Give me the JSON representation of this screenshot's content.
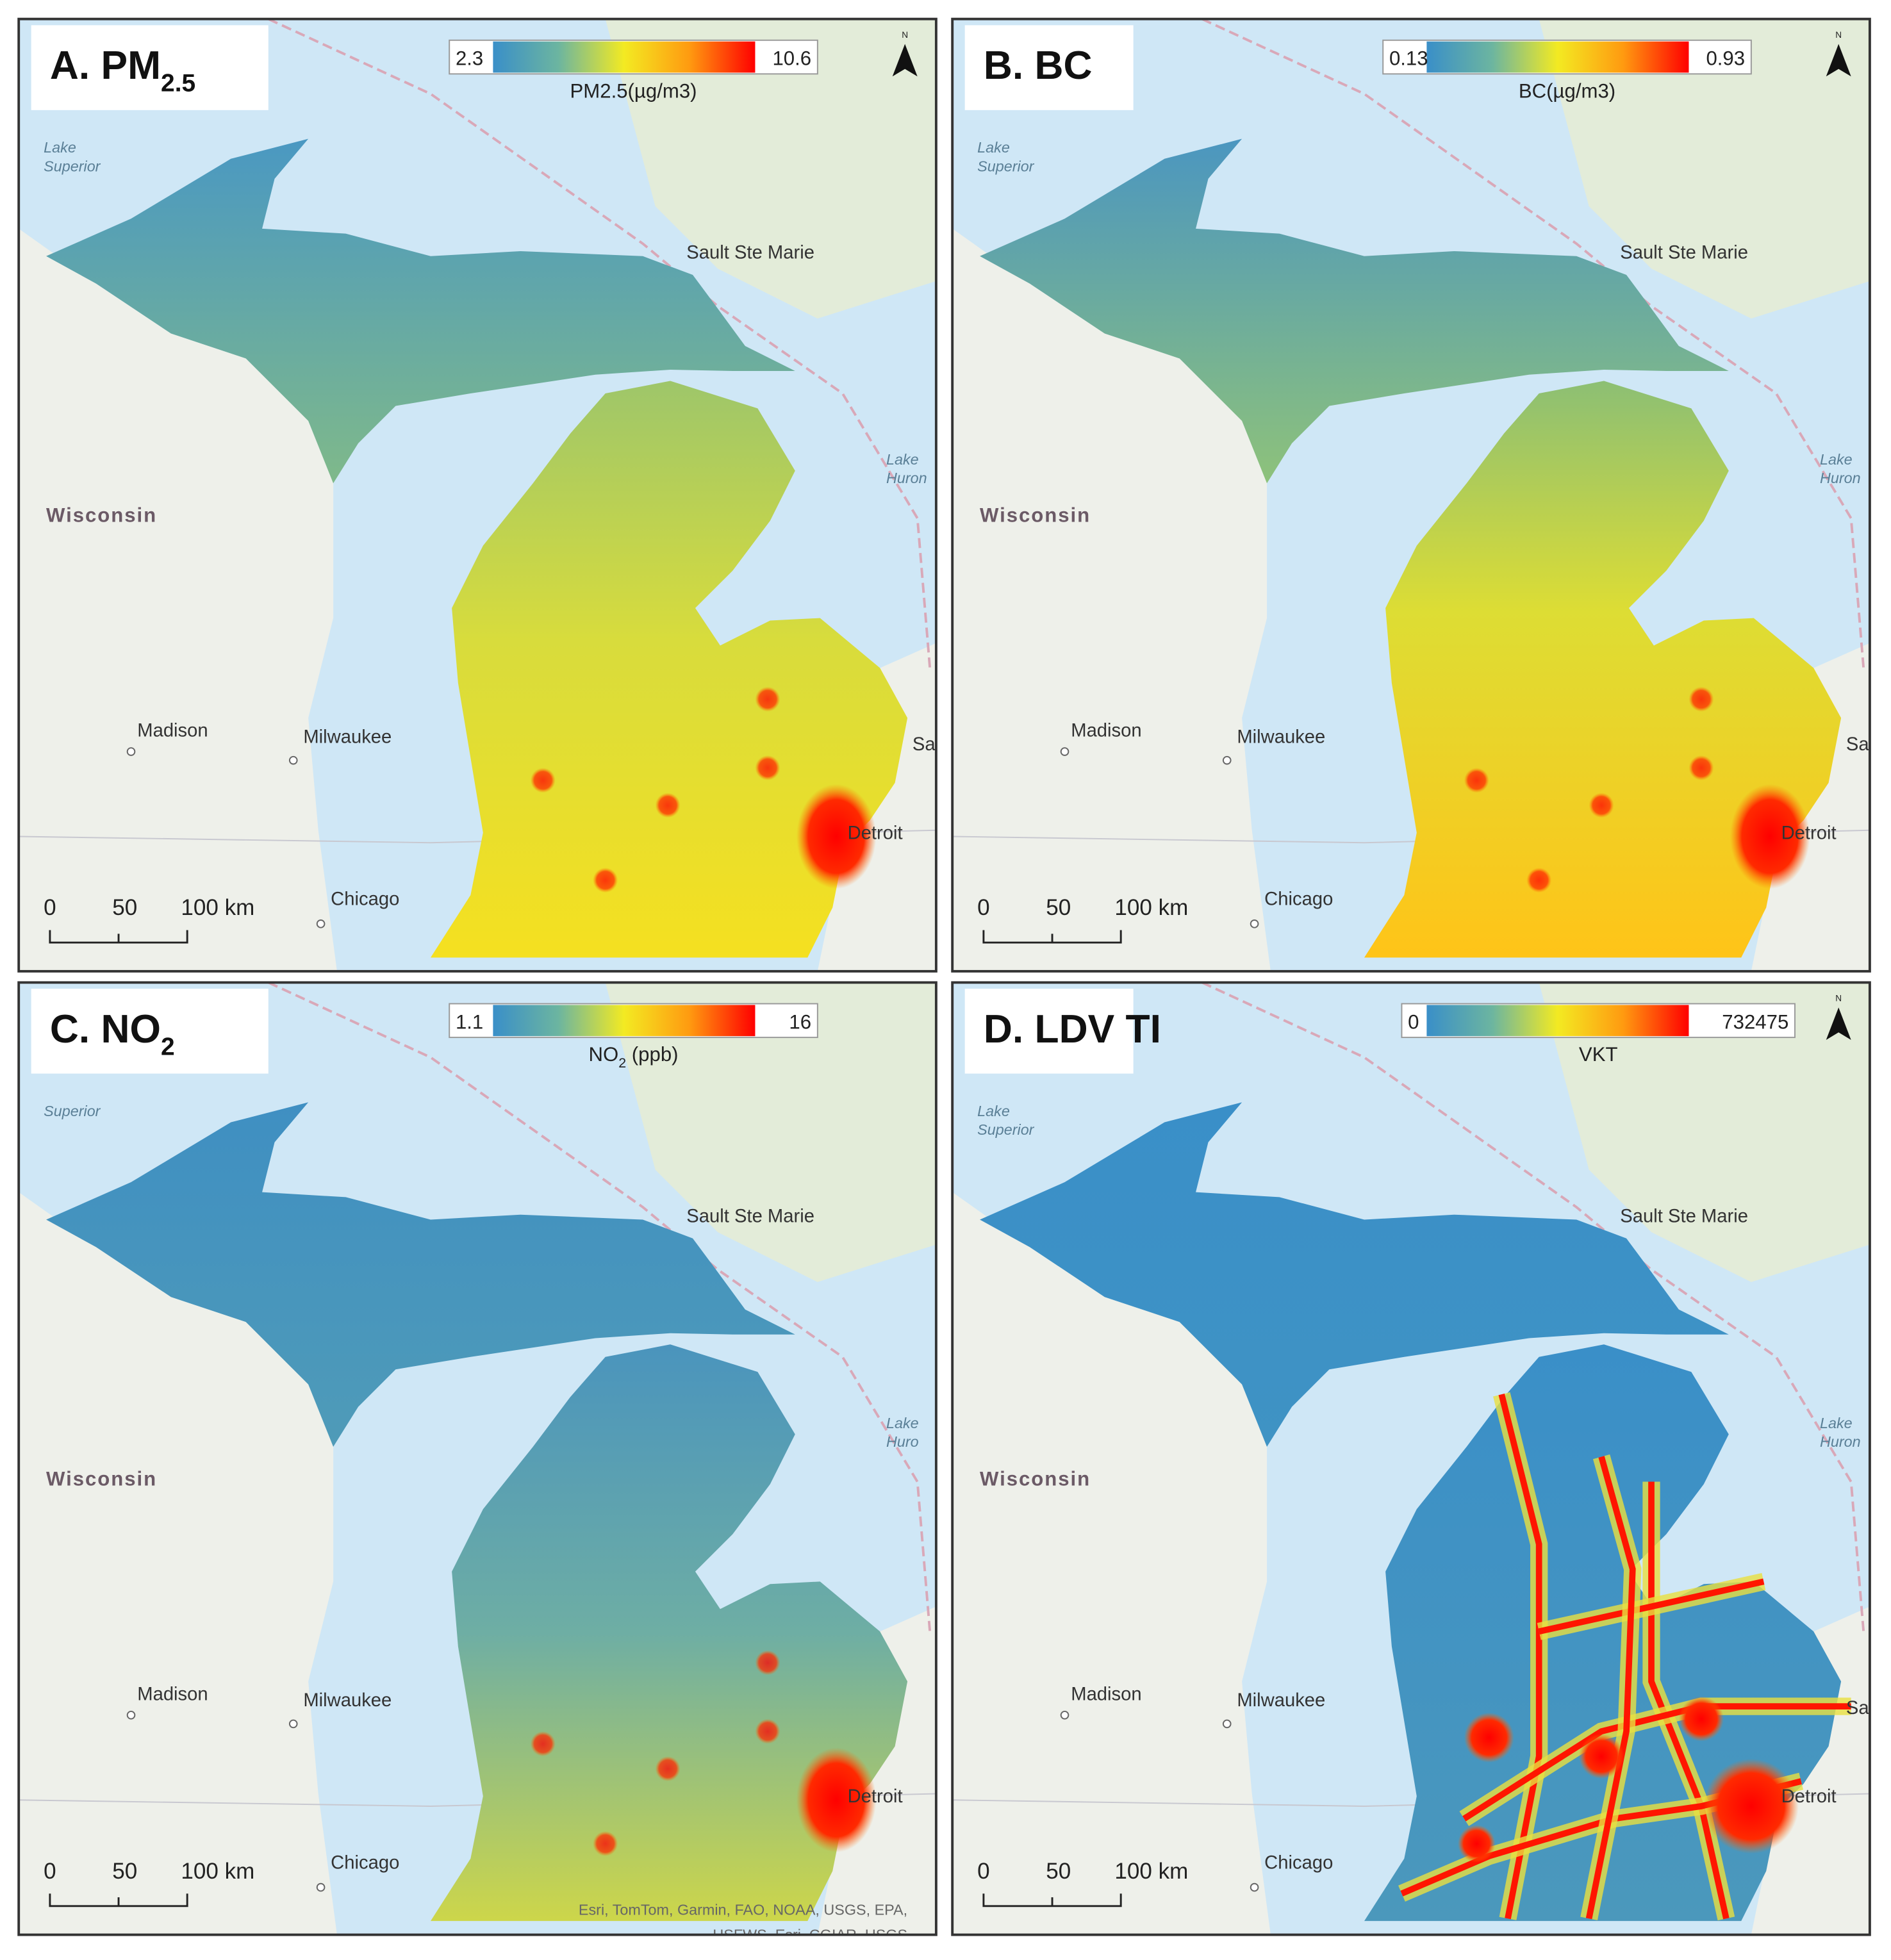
{
  "panels": [
    {
      "title": {
        "text": "A. PM",
        "sub": "2.5"
      },
      "legend": {
        "min": "2.3",
        "max": "10.6",
        "unit": {
          "text": "PM2.5(µg/m3)"
        }
      },
      "north": "N",
      "places": {
        "lake_superior": [
          "Lake",
          "Superior"
        ],
        "wisconsin": "Wisconsin",
        "madison": "Madison",
        "milwaukee": "Milwaukee",
        "chicago": "Chicago",
        "sault": "Sault Ste Marie",
        "lake_huron": [
          "Lake",
          "Huron"
        ],
        "detroit": "Detroit",
        "sarnia": "Sar"
      },
      "scale": [
        "0",
        "50",
        "100 km"
      ]
    },
    {
      "title": {
        "text": "B. BC"
      },
      "legend": {
        "min": "0.13",
        "max": "0.93",
        "unit": {
          "text": "BC(µg/m3)"
        }
      },
      "north": "N",
      "places": {
        "lake_superior": [
          "Lake",
          "Superior"
        ],
        "wisconsin": "Wisconsin",
        "madison": "Madison",
        "milwaukee": "Milwaukee",
        "chicago": "Chicago",
        "sault": "Sault Ste Marie",
        "lake_huron": [
          "Lake",
          "Huron"
        ],
        "detroit": "Detroit",
        "sarnia": "Sar"
      },
      "scale": [
        "0",
        "50",
        "100 km"
      ]
    },
    {
      "title": {
        "text": "C. NO",
        "sub": "2"
      },
      "legend": {
        "min": "1.1",
        "max": "16",
        "unit": {
          "text": "NO",
          "sub": "2",
          "tail": " (ppb)"
        }
      },
      "places": {
        "lake_superior": [
          "Superior"
        ],
        "wisconsin": "Wisconsin",
        "madison": "Madison",
        "milwaukee": "Milwaukee",
        "chicago": "Chicago",
        "sault": "Sault Ste Marie",
        "lake_huron": [
          "Lake",
          "Huro"
        ],
        "detroit": "Detroit"
      },
      "scale": [
        "0",
        "50",
        "100 km"
      ],
      "attribution": [
        "Esri, TomTom, Garmin, FAO, NOAA, USGS, EPA,",
        "USFWS, Esri, CGIAR, USGS"
      ]
    },
    {
      "title": {
        "text": "D. LDV TI"
      },
      "legend": {
        "min": "0",
        "max": "732475",
        "unit": {
          "text": "VKT"
        }
      },
      "north": "N",
      "places": {
        "lake_superior": [
          "Lake",
          "Superior"
        ],
        "wisconsin": "Wisconsin",
        "madison": "Madison",
        "milwaukee": "Milwaukee",
        "chicago": "Chicago",
        "sault": "Sault Ste Marie",
        "lake_huron": [
          "Lake",
          "Huron"
        ],
        "detroit": "Detroit",
        "sarnia": "Sarn"
      },
      "scale": [
        "0",
        "50",
        "100 km"
      ]
    }
  ]
}
